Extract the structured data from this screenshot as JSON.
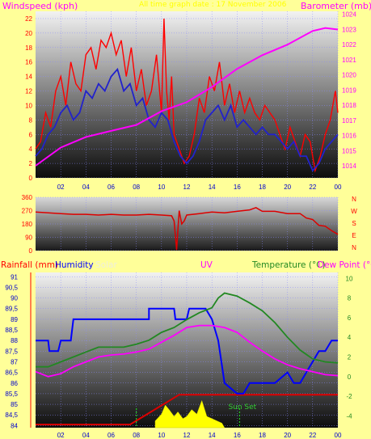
{
  "chart_data": [
    {
      "type": "line",
      "title": "All time graph date : 17 November 2006",
      "left_label": "Windspeed (kph)",
      "right_label": "Barometer (mb)",
      "x_ticks": [
        "02",
        "04",
        "06",
        "08",
        "10",
        "12",
        "14",
        "16",
        "18",
        "20",
        "22",
        "00"
      ],
      "y_left_ticks": [
        "0",
        "2",
        "4",
        "6",
        "8",
        "10",
        "12",
        "14",
        "16",
        "18",
        "20",
        "22"
      ],
      "y_left_lim": [
        0,
        23
      ],
      "y_right_ticks": [
        "1014",
        "1015",
        "1016",
        "1017",
        "1018",
        "1019",
        "1020",
        "1021",
        "1022",
        "1023",
        "1024"
      ],
      "y_right_lim": [
        1013.2,
        1024.2
      ],
      "colors": {
        "gust": "#FF0000",
        "average": "#2222CC",
        "barometer": "#FF00FF"
      },
      "series": [
        {
          "key": "gust",
          "x": [
            0,
            0.4,
            0.8,
            1.2,
            1.6,
            2,
            2.4,
            2.8,
            3.2,
            3.6,
            4,
            4.4,
            4.8,
            5.2,
            5.6,
            6,
            6.4,
            6.8,
            7.2,
            7.6,
            8,
            8.4,
            8.8,
            9.2,
            9.6,
            10,
            10.2,
            10.4,
            10.6,
            10.8,
            11,
            11.4,
            11.8,
            12.2,
            12.6,
            13,
            13.4,
            13.8,
            14.2,
            14.6,
            15,
            15.4,
            15.8,
            16.2,
            16.6,
            17,
            17.4,
            17.8,
            18.2,
            18.6,
            19,
            19.4,
            19.8,
            20.2,
            20.6,
            21,
            21.4,
            21.8,
            22.2,
            22.6,
            23,
            23.4,
            23.8,
            24
          ],
          "values": [
            4,
            5,
            9,
            7,
            12,
            14,
            10,
            16,
            13,
            12,
            17,
            18,
            15,
            19,
            18,
            20,
            17,
            19,
            14,
            18,
            12,
            15,
            10,
            12,
            17,
            9,
            22,
            12,
            8,
            14,
            6,
            4,
            2,
            3,
            6,
            11,
            9,
            14,
            12,
            16,
            10,
            13,
            9,
            12,
            9,
            11,
            9,
            8,
            10,
            9,
            8,
            6,
            4,
            7,
            5,
            3,
            6,
            5,
            1,
            3,
            6,
            8,
            12,
            9
          ]
        },
        {
          "key": "average",
          "x": [
            0,
            0.5,
            1,
            1.5,
            2,
            2.5,
            3,
            3.5,
            4,
            4.5,
            5,
            5.5,
            6,
            6.5,
            7,
            7.5,
            8,
            8.5,
            9,
            9.5,
            10,
            10.5,
            11,
            11.5,
            12,
            12.5,
            13,
            13.5,
            14,
            14.5,
            15,
            15.5,
            16,
            16.5,
            17,
            17.5,
            18,
            18.5,
            19,
            19.5,
            20,
            20.5,
            21,
            21.5,
            22,
            22.5,
            23,
            23.5,
            24
          ],
          "values": [
            3,
            4,
            6,
            7,
            9,
            10,
            8,
            9,
            12,
            11,
            13,
            12,
            14,
            15,
            12,
            13,
            10,
            11,
            8,
            7,
            9,
            8,
            5,
            3,
            2,
            3,
            5,
            8,
            9,
            10,
            8,
            10,
            7,
            8,
            7,
            6,
            7,
            6,
            6,
            5,
            4,
            5,
            3,
            3,
            1,
            2,
            4,
            5,
            6
          ]
        },
        {
          "key": "barometer",
          "x": [
            0,
            2,
            4,
            6,
            8,
            10,
            12,
            14,
            16,
            18,
            20,
            22,
            23,
            24
          ],
          "values": [
            1014.0,
            1015.2,
            1015.9,
            1016.3,
            1016.7,
            1017.6,
            1018.2,
            1019.2,
            1020.4,
            1021.3,
            1022.0,
            1022.9,
            1023.1,
            1023.0
          ]
        }
      ]
    },
    {
      "type": "line",
      "y_ticks": [
        "360",
        "270",
        "180",
        "90",
        "0"
      ],
      "y_lim": [
        0,
        360
      ],
      "compass": [
        "N",
        "W",
        "S",
        "E",
        "N"
      ],
      "color": "#DD0000",
      "x": [
        0,
        1,
        2,
        3,
        4,
        5,
        6,
        7,
        8,
        9,
        10,
        10.8,
        11,
        11.2,
        11.4,
        11.6,
        11.8,
        12,
        13,
        14,
        15,
        16,
        17,
        17.5,
        18,
        19,
        20,
        21,
        21.5,
        22,
        22.5,
        23,
        23.5,
        24
      ],
      "values": [
        260,
        255,
        250,
        245,
        245,
        240,
        245,
        240,
        240,
        245,
        240,
        235,
        200,
        5,
        270,
        180,
        200,
        240,
        250,
        260,
        255,
        265,
        275,
        290,
        265,
        265,
        250,
        250,
        220,
        210,
        170,
        165,
        135,
        110
      ]
    },
    {
      "type": "line",
      "labels": {
        "rain": "Rainfall (mm)",
        "humidity": "Humidity",
        "solar": "Solar",
        "uv": "UV",
        "temp": "Temperature (°C)",
        "dew": "Dew Point (°C)"
      },
      "annotation": "Sun Set",
      "y_left_ticks": [
        "84",
        "84,5",
        "85",
        "85,5",
        "86",
        "86,5",
        "87",
        "87,5",
        "88",
        "88,5",
        "89",
        "89,5",
        "90",
        "90,5",
        "91"
      ],
      "y_left_lim": [
        83.9,
        91.2
      ],
      "y_right_ticks": [
        "-4",
        "-2",
        "0",
        "2",
        "4",
        "6",
        "8",
        "10"
      ],
      "y_right_lim": [
        -5.2,
        10.6
      ],
      "colors": {
        "rain": "#FF0000",
        "humidity": "#0000FF",
        "temperature": "#228822",
        "dew": "#FF00FF",
        "solar": "#FFFF00",
        "rain_total": "#DD0000"
      },
      "series": [
        {
          "key": "humidity",
          "x": [
            0,
            1,
            1.1,
            1.8,
            2,
            2.8,
            3,
            3.5,
            4,
            6,
            7,
            7.5,
            8,
            8.5,
            9,
            9,
            10.5,
            11,
            11.1,
            11.5,
            12,
            12.2,
            12.5,
            13,
            13.5,
            14,
            14.5,
            15,
            16,
            16.5,
            17,
            17.5,
            18,
            19,
            20,
            20.5,
            21,
            21.5,
            22,
            22.5,
            23,
            23.5,
            24
          ],
          "values": [
            88,
            88,
            87.5,
            87.5,
            88,
            88,
            89,
            89,
            89,
            89,
            89,
            89,
            89,
            89,
            89,
            89.5,
            89.5,
            89.5,
            89,
            89,
            89,
            89.5,
            89.5,
            89.5,
            89.5,
            89,
            88,
            86,
            85.5,
            85.5,
            86,
            86,
            86,
            86,
            86.5,
            86,
            86,
            86.5,
            87,
            87.5,
            87.5,
            88,
            88
          ]
        },
        {
          "key": "temperature",
          "x": [
            0,
            1,
            2,
            3,
            4,
            5,
            6,
            7,
            8,
            9,
            10,
            11,
            12,
            13,
            14,
            14.5,
            15,
            16,
            17,
            18,
            19,
            20,
            21,
            22,
            23,
            24
          ],
          "values": [
            1,
            1,
            1.5,
            2,
            2.5,
            3,
            3,
            3,
            3.3,
            3.7,
            4.5,
            5,
            5.8,
            6.5,
            7,
            8,
            8.5,
            8.2,
            7.5,
            6.7,
            5.5,
            4,
            2.7,
            1.8,
            1.5,
            1.4
          ]
        },
        {
          "key": "dew",
          "x": [
            0,
            1,
            2,
            3,
            4,
            5,
            6,
            7,
            8,
            9,
            10,
            11,
            12,
            13,
            14,
            15,
            16,
            17,
            18,
            19,
            20,
            21,
            22,
            23,
            24
          ],
          "values": [
            0.5,
            0,
            0.3,
            1,
            1.5,
            2,
            2.2,
            2.3,
            2.5,
            2.8,
            3.5,
            4.2,
            5,
            5.2,
            5.2,
            5,
            4.5,
            3.5,
            2.6,
            1.8,
            1.2,
            0.8,
            0.5,
            0.2,
            0.1
          ]
        },
        {
          "key": "rain_total",
          "x": [
            0,
            7.5,
            7.5,
            11.4,
            11.4,
            24
          ],
          "values": [
            84.05,
            84.05,
            84.05,
            85.45,
            85.45,
            85.45
          ]
        },
        {
          "key": "solar",
          "x": [
            9.5,
            10,
            10.3,
            10.6,
            11,
            11.3,
            11.7,
            12,
            12.4,
            12.8,
            13.2,
            13.6,
            14,
            14.4,
            14.8,
            15
          ],
          "values": [
            0.3,
            0.6,
            1.0,
            0.8,
            0.5,
            0.7,
            0.4,
            0.5,
            0.8,
            0.6,
            1.2,
            0.5,
            0.4,
            0.3,
            0.2,
            0
          ]
        }
      ]
    }
  ]
}
